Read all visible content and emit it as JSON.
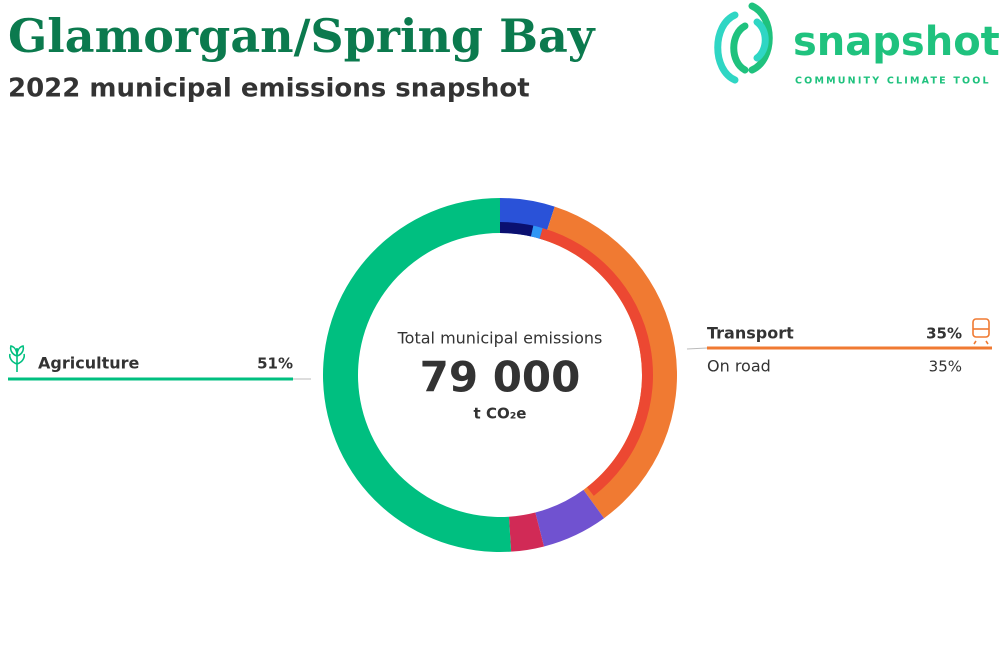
{
  "chart_data": {
    "type": "donut",
    "title": "Glamorgan/Spring Bay",
    "subtitle": "2022 municipal emissions snapshot",
    "logo": {
      "name": "snapshot",
      "tagline": "COMMUNITY CLIMATE TOOL"
    },
    "center_title": "Total municipal emissions",
    "total": {
      "value": 79000,
      "label": "79 000"
    },
    "unit": "t CO₂e",
    "outer": {
      "categories": [
        null,
        "Transport",
        null,
        null,
        "Agriculture"
      ],
      "values": [
        5,
        35,
        6,
        3,
        51
      ],
      "value_labels": [
        null,
        "35%",
        null,
        null,
        "51%"
      ],
      "colors": [
        "#2a52d8",
        "#f07a32",
        "#7052d0",
        "#d12a56",
        "#00bf80"
      ]
    },
    "inner": {
      "categories": [
        null,
        null,
        "On road"
      ],
      "values": [
        3.5,
        1,
        35
      ],
      "value_labels": [
        null,
        null,
        "35%"
      ],
      "colors": [
        "#0a1070",
        "#2f96f5",
        "#ec4832"
      ]
    }
  }
}
